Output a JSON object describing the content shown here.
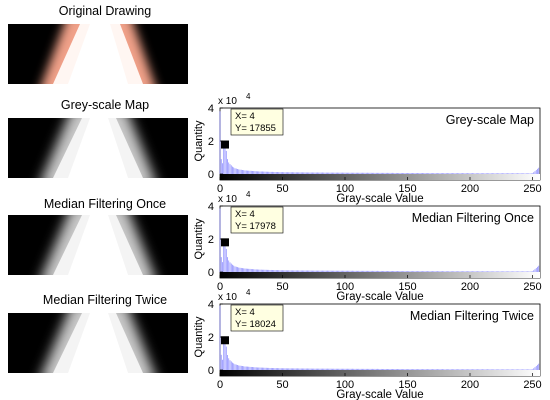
{
  "figure": {
    "panels": [
      {
        "label": "Original Drawing",
        "kind": "original"
      },
      {
        "label": "Grey-scale Map",
        "kind": "gray"
      },
      {
        "label": "Median Filtering Once",
        "kind": "gray"
      },
      {
        "label": "Median Filtering Twice",
        "kind": "gray"
      }
    ]
  },
  "chart_data": [
    {
      "type": "bar",
      "title": "Grey-scale Map",
      "xlabel": "Gray-scale Value",
      "ylabel": "Quantity",
      "y_scale_note": "x 10",
      "y_scale_exponent": "4",
      "xlim": [
        0,
        256
      ],
      "ylim": [
        0,
        40000
      ],
      "xticks": [
        0,
        50,
        100,
        150,
        200,
        250
      ],
      "yticks": [
        0,
        2,
        4
      ],
      "bar_color": "#8080ff",
      "colorbar": "grayscale 0-255",
      "datatip": {
        "x_label": "X= 4",
        "y_label": "Y= 17855",
        "x": 4,
        "y": 17855
      },
      "series": [
        {
          "x": [
            0,
            1,
            2,
            3,
            4,
            5,
            6,
            7,
            8,
            10,
            12,
            15,
            20,
            30,
            40,
            50,
            75,
            100,
            150,
            200,
            250,
            255
          ],
          "values": [
            38000,
            9000,
            6500,
            18000,
            17855,
            14000,
            9000,
            7000,
            6000,
            4500,
            3500,
            2800,
            2200,
            1600,
            1300,
            1100,
            900,
            800,
            600,
            500,
            400,
            3800
          ]
        }
      ]
    },
    {
      "type": "bar",
      "title": "Median Filtering Once",
      "xlabel": "Gray-scale Value",
      "ylabel": "Quantity",
      "y_scale_note": "x 10",
      "y_scale_exponent": "4",
      "xlim": [
        0,
        256
      ],
      "ylim": [
        0,
        40000
      ],
      "xticks": [
        0,
        50,
        100,
        150,
        200,
        250
      ],
      "yticks": [
        0,
        2,
        4
      ],
      "bar_color": "#8080ff",
      "colorbar": "grayscale 0-255",
      "datatip": {
        "x_label": "X= 4",
        "y_label": "Y= 17978",
        "x": 4,
        "y": 17978
      },
      "series": [
        {
          "x": [
            0,
            1,
            2,
            3,
            4,
            5,
            6,
            7,
            8,
            10,
            12,
            15,
            20,
            30,
            40,
            50,
            75,
            100,
            150,
            200,
            250,
            255
          ],
          "values": [
            38500,
            9000,
            6000,
            18500,
            17978,
            14000,
            9000,
            7000,
            5800,
            4400,
            3400,
            2700,
            2100,
            1500,
            1250,
            1050,
            850,
            750,
            550,
            450,
            350,
            3800
          ]
        }
      ]
    },
    {
      "type": "bar",
      "title": "Median Filtering Twice",
      "xlabel": "Gray-scale Value",
      "ylabel": "Quantity",
      "y_scale_note": "x 10",
      "y_scale_exponent": "4",
      "xlim": [
        0,
        256
      ],
      "ylim": [
        0,
        40000
      ],
      "xticks": [
        0,
        50,
        100,
        150,
        200,
        250
      ],
      "yticks": [
        0,
        2,
        4
      ],
      "bar_color": "#8080ff",
      "colorbar": "grayscale 0-255",
      "datatip": {
        "x_label": "X= 4",
        "y_label": "Y= 18024",
        "x": 4,
        "y": 18024
      },
      "series": [
        {
          "x": [
            0,
            1,
            2,
            3,
            4,
            5,
            6,
            7,
            8,
            10,
            12,
            15,
            20,
            30,
            40,
            50,
            75,
            100,
            150,
            200,
            250,
            255
          ],
          "values": [
            39000,
            9200,
            6200,
            18600,
            18024,
            14200,
            9100,
            7100,
            5900,
            4500,
            3500,
            2750,
            2150,
            1550,
            1250,
            1050,
            850,
            750,
            550,
            450,
            350,
            3800
          ]
        }
      ]
    }
  ]
}
